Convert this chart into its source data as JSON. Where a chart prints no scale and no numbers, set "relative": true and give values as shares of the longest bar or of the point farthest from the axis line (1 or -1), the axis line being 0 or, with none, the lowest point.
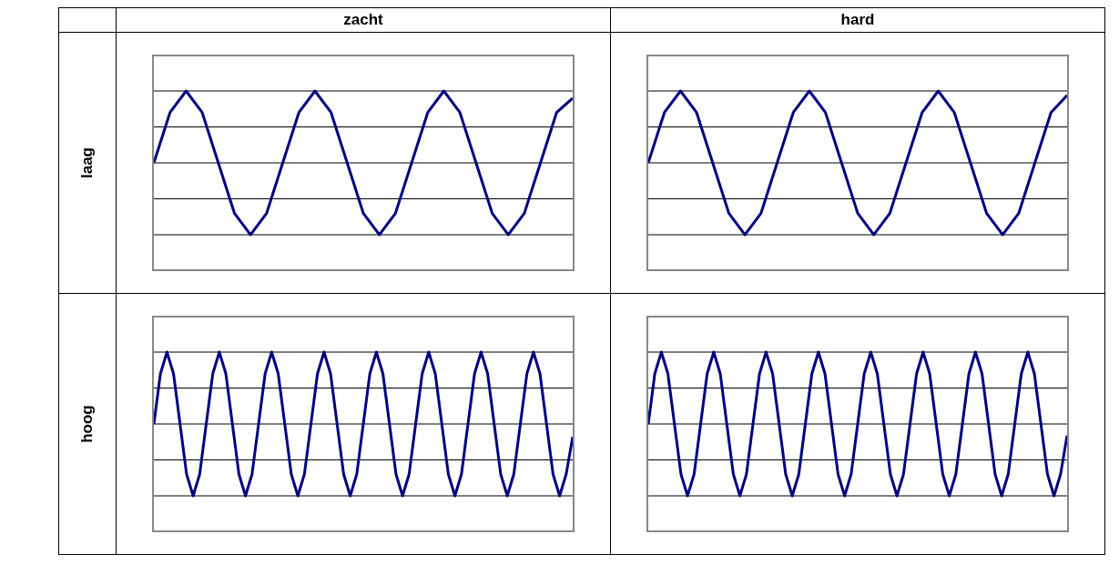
{
  "chart_data": [
    {
      "type": "line",
      "title": "zacht",
      "ylabel": "laag",
      "relative": true,
      "grid": "y",
      "tick_labels": false,
      "categories": [
        null,
        null,
        null,
        null,
        null,
        null,
        null,
        null,
        null,
        null,
        null,
        null,
        null,
        null,
        null,
        null,
        null,
        null,
        null,
        null,
        null,
        null,
        null,
        null,
        null,
        null,
        null
      ],
      "series": [
        {
          "color": "#000080",
          "values": [
            0.5,
            0.85,
            1,
            0.85,
            0.5,
            0.15,
            0,
            0.15,
            0.5,
            0.85,
            1,
            0.85,
            0.5,
            0.15,
            0,
            0.15,
            0.5,
            0.85,
            1,
            0.85,
            0.5,
            0.15,
            0,
            0.15,
            0.5,
            0.85,
            0.95
          ]
        }
      ]
    },
    {
      "type": "line",
      "title": "hard",
      "relative": true,
      "grid": "y",
      "tick_labels": false,
      "categories": [
        null,
        null,
        null,
        null,
        null,
        null,
        null,
        null,
        null,
        null,
        null,
        null,
        null,
        null,
        null,
        null,
        null,
        null,
        null,
        null,
        null,
        null,
        null,
        null,
        null,
        null,
        null
      ],
      "series": [
        {
          "color": "#000080",
          "values": [
            0.5,
            0.85,
            1,
            0.85,
            0.5,
            0.15,
            0,
            0.15,
            0.5,
            0.85,
            1,
            0.85,
            0.5,
            0.15,
            0,
            0.15,
            0.5,
            0.85,
            1,
            0.85,
            0.5,
            0.15,
            0,
            0.15,
            0.5,
            0.85,
            0.97
          ]
        }
      ]
    },
    {
      "type": "line",
      "ylabel": "hoog",
      "relative": true,
      "grid": "y",
      "tick_labels": false,
      "categories": [
        null,
        null,
        null,
        null,
        null,
        null,
        null,
        null,
        null,
        null,
        null,
        null,
        null,
        null,
        null,
        null,
        null,
        null,
        null,
        null,
        null,
        null,
        null,
        null,
        null,
        null,
        null,
        null,
        null,
        null,
        null,
        null,
        null,
        null,
        null,
        null,
        null,
        null,
        null,
        null,
        null,
        null,
        null,
        null,
        null,
        null,
        null,
        null,
        null,
        null,
        null,
        null,
        null,
        null,
        null,
        null,
        null,
        null,
        null,
        null,
        null,
        null,
        null,
        null,
        null
      ],
      "series": [
        {
          "color": "#000080",
          "values": [
            0.5,
            0.85,
            1,
            0.85,
            0.5,
            0.15,
            0,
            0.15,
            0.5,
            0.85,
            1,
            0.85,
            0.5,
            0.15,
            0,
            0.15,
            0.5,
            0.85,
            1,
            0.85,
            0.5,
            0.15,
            0,
            0.15,
            0.5,
            0.85,
            1,
            0.85,
            0.5,
            0.15,
            0,
            0.15,
            0.5,
            0.85,
            1,
            0.85,
            0.5,
            0.15,
            0,
            0.15,
            0.5,
            0.85,
            1,
            0.85,
            0.5,
            0.15,
            0,
            0.15,
            0.5,
            0.85,
            1,
            0.85,
            0.5,
            0.15,
            0,
            0.15,
            0.5,
            0.85,
            1,
            0.85,
            0.5,
            0.15,
            0,
            0.15,
            0.41
          ]
        }
      ]
    },
    {
      "type": "line",
      "relative": true,
      "grid": "y",
      "tick_labels": false,
      "categories": [
        null,
        null,
        null,
        null,
        null,
        null,
        null,
        null,
        null,
        null,
        null,
        null,
        null,
        null,
        null,
        null,
        null,
        null,
        null,
        null,
        null,
        null,
        null,
        null,
        null,
        null,
        null,
        null,
        null,
        null,
        null,
        null,
        null,
        null,
        null,
        null,
        null,
        null,
        null,
        null,
        null,
        null,
        null,
        null,
        null,
        null,
        null,
        null,
        null,
        null,
        null,
        null,
        null,
        null,
        null,
        null,
        null,
        null,
        null,
        null,
        null,
        null,
        null,
        null,
        null
      ],
      "series": [
        {
          "color": "#000080",
          "values": [
            0.5,
            0.85,
            1,
            0.85,
            0.5,
            0.15,
            0,
            0.15,
            0.5,
            0.85,
            1,
            0.85,
            0.5,
            0.15,
            0,
            0.15,
            0.5,
            0.85,
            1,
            0.85,
            0.5,
            0.15,
            0,
            0.15,
            0.5,
            0.85,
            1,
            0.85,
            0.5,
            0.15,
            0,
            0.15,
            0.5,
            0.85,
            1,
            0.85,
            0.5,
            0.15,
            0,
            0.15,
            0.5,
            0.85,
            1,
            0.85,
            0.5,
            0.15,
            0,
            0.15,
            0.5,
            0.85,
            1,
            0.85,
            0.5,
            0.15,
            0,
            0.15,
            0.5,
            0.85,
            1,
            0.85,
            0.5,
            0.15,
            0,
            0.15,
            0.42
          ]
        }
      ]
    }
  ]
}
